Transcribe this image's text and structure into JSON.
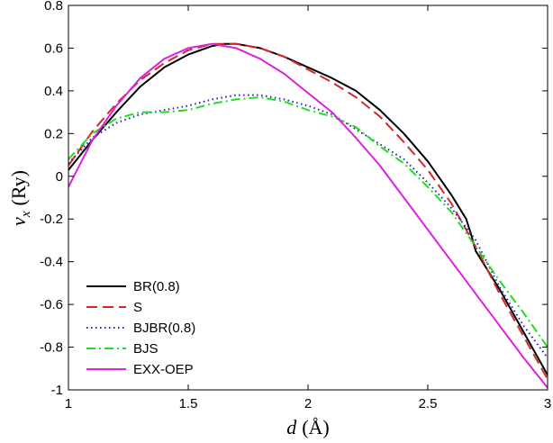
{
  "chart_data": {
    "type": "line",
    "xlabel": "d (Å)",
    "xlabel_parts": {
      "var": "d",
      "unit": "(Å)"
    },
    "ylabel": "v_x (Ry)",
    "ylabel_parts": {
      "var": "v",
      "sub": "x",
      "unit": "(Ry)"
    },
    "xlim": [
      1,
      3
    ],
    "ylim": [
      -1,
      0.8
    ],
    "xticks": [
      1,
      1.5,
      2,
      2.5,
      3
    ],
    "xtick_labels": [
      "1",
      "1.5",
      "2",
      "2.5",
      "3"
    ],
    "yticks": [
      -1,
      -0.8,
      -0.6,
      -0.4,
      -0.2,
      0,
      0.2,
      0.4,
      0.6,
      0.8
    ],
    "ytick_labels": [
      "-1",
      "-0.8",
      "-0.6",
      "-0.4",
      "-0.2",
      "0",
      "0.2",
      "0.4",
      "0.6",
      "0.8"
    ],
    "grid": false,
    "legend_position": "bottom-left",
    "series": [
      {
        "name": "BR(0.8)",
        "color": "#000000",
        "dash": "solid",
        "x": [
          1.0,
          1.1,
          1.2,
          1.3,
          1.4,
          1.5,
          1.6,
          1.65,
          1.7,
          1.8,
          1.9,
          2.0,
          2.1,
          2.2,
          2.3,
          2.4,
          2.5,
          2.6,
          2.66,
          2.68,
          2.7,
          2.8,
          2.9,
          3.0
        ],
        "y": [
          0.03,
          0.17,
          0.3,
          0.42,
          0.51,
          0.57,
          0.61,
          0.62,
          0.62,
          0.6,
          0.56,
          0.51,
          0.46,
          0.4,
          0.31,
          0.2,
          0.07,
          -0.09,
          -0.2,
          -0.27,
          -0.35,
          -0.53,
          -0.73,
          -0.93
        ]
      },
      {
        "name": "S",
        "color": "#d62728",
        "dash": "dashed",
        "x": [
          1.0,
          1.1,
          1.2,
          1.3,
          1.4,
          1.5,
          1.6,
          1.7,
          1.8,
          1.9,
          2.0,
          2.1,
          2.2,
          2.3,
          2.4,
          2.5,
          2.6,
          2.7,
          2.8,
          2.9,
          3.0
        ],
        "y": [
          0.05,
          0.21,
          0.34,
          0.45,
          0.53,
          0.59,
          0.62,
          0.62,
          0.6,
          0.56,
          0.5,
          0.44,
          0.37,
          0.28,
          0.16,
          0.03,
          -0.13,
          -0.33,
          -0.55,
          -0.75,
          -0.95
        ]
      },
      {
        "name": "BJBR(0.8)",
        "color": "#1f1fb4",
        "dash": "dotted",
        "x": [
          1.0,
          1.1,
          1.2,
          1.3,
          1.4,
          1.5,
          1.6,
          1.7,
          1.8,
          1.9,
          2.0,
          2.1,
          2.2,
          2.3,
          2.4,
          2.5,
          2.6,
          2.7,
          2.8,
          2.9,
          3.0
        ],
        "y": [
          0.06,
          0.18,
          0.25,
          0.29,
          0.31,
          0.33,
          0.36,
          0.38,
          0.38,
          0.36,
          0.33,
          0.29,
          0.22,
          0.15,
          0.08,
          -0.03,
          -0.15,
          -0.3,
          -0.52,
          -0.7,
          -0.85
        ]
      },
      {
        "name": "BJS",
        "color": "#22dd22",
        "dash": "dashdot",
        "x": [
          1.0,
          1.1,
          1.2,
          1.3,
          1.4,
          1.5,
          1.6,
          1.7,
          1.8,
          1.9,
          2.0,
          2.1,
          2.2,
          2.3,
          2.4,
          2.5,
          2.6,
          2.7,
          2.8,
          2.9,
          3.0
        ],
        "y": [
          0.08,
          0.2,
          0.27,
          0.3,
          0.3,
          0.31,
          0.34,
          0.36,
          0.37,
          0.35,
          0.31,
          0.28,
          0.23,
          0.14,
          0.06,
          -0.05,
          -0.17,
          -0.33,
          -0.49,
          -0.64,
          -0.8
        ]
      },
      {
        "name": "EXX-OEP",
        "color": "#dd22dd",
        "dash": "solid",
        "x": [
          1.0,
          1.1,
          1.2,
          1.3,
          1.4,
          1.5,
          1.6,
          1.65,
          1.7,
          1.8,
          1.9,
          2.0,
          2.1,
          2.2,
          2.3,
          2.4,
          2.5,
          2.6,
          2.7,
          2.8,
          2.9,
          3.0
        ],
        "y": [
          -0.05,
          0.17,
          0.33,
          0.46,
          0.55,
          0.6,
          0.62,
          0.61,
          0.6,
          0.55,
          0.48,
          0.39,
          0.3,
          0.18,
          0.05,
          -0.1,
          -0.25,
          -0.4,
          -0.55,
          -0.7,
          -0.85,
          -0.99
        ]
      }
    ]
  }
}
